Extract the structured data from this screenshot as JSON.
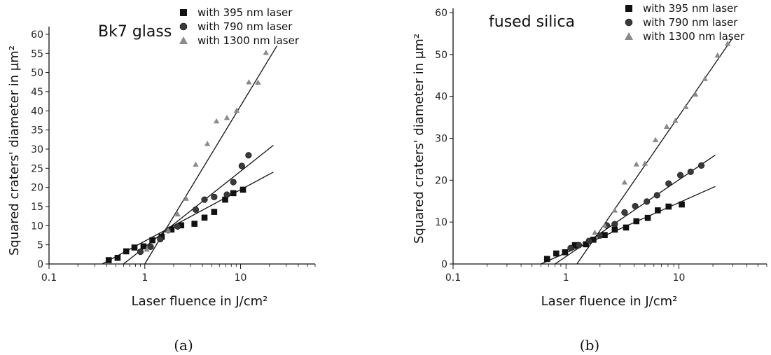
{
  "chart_data": [
    {
      "type": "scatter",
      "title": "Bk7 glass",
      "xlabel": "Laser fluence in J/cm²",
      "ylabel": "Squared craters' diameter in µm²",
      "xscale": "log",
      "xlim": [
        0.1,
        60
      ],
      "ylim": [
        0,
        62
      ],
      "yticks": [
        0,
        5,
        10,
        15,
        20,
        25,
        30,
        35,
        40,
        45,
        50,
        55,
        60
      ],
      "xticks": [
        {
          "value": 0.1,
          "label": "0.1"
        },
        {
          "value": 1,
          "label": "1"
        },
        {
          "value": 10,
          "label": "10"
        }
      ],
      "legend_position": "top-right",
      "caption": "(a)",
      "series": [
        {
          "name": "with 395 nm laser",
          "marker": "square",
          "color": "#111111",
          "x": [
            0.42,
            0.52,
            0.64,
            0.78,
            0.97,
            1.2,
            1.5,
            1.9,
            2.4,
            3.3,
            4.2,
            5.3,
            6.9,
            8.4,
            10.6
          ],
          "y": [
            1.0,
            1.6,
            3.3,
            4.3,
            4.6,
            6.2,
            7.1,
            9.0,
            10.1,
            10.5,
            12.1,
            13.6,
            16.8,
            18.5,
            19.4
          ],
          "fit": {
            "x0": 0.36,
            "x1": 22,
            "y0": 0,
            "y1": 24
          }
        },
        {
          "name": "with 790 nm laser",
          "marker": "circle",
          "color": "#3a3a3a",
          "x": [
            0.9,
            1.15,
            1.45,
            1.75,
            2.2,
            3.4,
            4.2,
            5.3,
            7.2,
            8.4,
            10.3,
            12.1
          ],
          "y": [
            3.2,
            4.5,
            6.5,
            8.8,
            9.8,
            14.2,
            16.8,
            17.5,
            18.1,
            21.4,
            25.6,
            28.4
          ],
          "fit": {
            "x0": 0.6,
            "x1": 22,
            "y0": 0,
            "y1": 31
          }
        },
        {
          "name": "with 1300 nm laser",
          "marker": "triangle",
          "color": "#8a8a8a",
          "x": [
            1.05,
            1.75,
            2.2,
            2.7,
            3.4,
            4.5,
            5.6,
            7.2,
            9.1,
            12.2,
            15.2,
            18.4
          ],
          "y": [
            3.8,
            8.7,
            13.0,
            17.1,
            26.0,
            31.4,
            37.3,
            38.2,
            40.1,
            47.5,
            47.4,
            55.2
          ],
          "fit": {
            "x0": 1.0,
            "x1": 24,
            "y0": 0,
            "y1": 57
          }
        }
      ]
    },
    {
      "type": "scatter",
      "title": "fused silica",
      "xlabel": "Laser fluence in J/cm²",
      "ylabel": "Squared craters' diameter in µm²",
      "xscale": "log",
      "xlim": [
        0.1,
        60
      ],
      "ylim": [
        0,
        61
      ],
      "yticks": [
        0,
        10,
        20,
        30,
        40,
        50,
        60
      ],
      "xticks": [
        {
          "value": 0.1,
          "label": "0.1"
        },
        {
          "value": 1,
          "label": "1"
        },
        {
          "value": 10,
          "label": "10"
        }
      ],
      "legend_position": "top-right",
      "caption": "(b)",
      "series": [
        {
          "name": "with 395 nm laser",
          "marker": "square",
          "color": "#111111",
          "x": [
            0.68,
            0.82,
            0.98,
            1.2,
            1.5,
            1.75,
            2.2,
            2.7,
            3.4,
            4.2,
            5.3,
            6.5,
            8.1,
            10.6
          ],
          "y": [
            1.2,
            2.5,
            2.8,
            4.5,
            4.7,
            5.8,
            6.9,
            8.2,
            8.7,
            10.2,
            11.0,
            12.8,
            13.7,
            14.2
          ],
          "fit": {
            "x0": 0.6,
            "x1": 21,
            "y0": 0,
            "y1": 18.5
          }
        },
        {
          "name": "with 790 nm laser",
          "marker": "circle",
          "color": "#3a3a3a",
          "x": [
            1.1,
            1.3,
            1.6,
            2.0,
            2.3,
            2.7,
            3.3,
            4.1,
            5.2,
            6.4,
            8.1,
            10.3,
            12.7,
            15.8
          ],
          "y": [
            3.8,
            4.5,
            5.5,
            6.8,
            9.2,
            9.5,
            12.3,
            13.8,
            14.9,
            16.4,
            19.2,
            21.2,
            22.0,
            23.5
          ],
          "fit": {
            "x0": 0.8,
            "x1": 21,
            "y0": 0,
            "y1": 26
          }
        },
        {
          "name": "with 1300 nm laser",
          "marker": "triangle",
          "color": "#8a8a8a",
          "x": [
            1.8,
            2.2,
            2.7,
            3.3,
            4.2,
            5.0,
            6.2,
            7.8,
            9.3,
            11.5,
            14.0,
            17.0,
            22.0,
            27.0
          ],
          "y": [
            7.5,
            9.2,
            12.8,
            19.5,
            23.8,
            24.0,
            29.6,
            32.8,
            34.2,
            37.5,
            40.5,
            44.2,
            49.8,
            52.6
          ],
          "fit": {
            "x0": 1.25,
            "x1": 30,
            "y0": 0,
            "y1": 54
          }
        }
      ]
    }
  ]
}
